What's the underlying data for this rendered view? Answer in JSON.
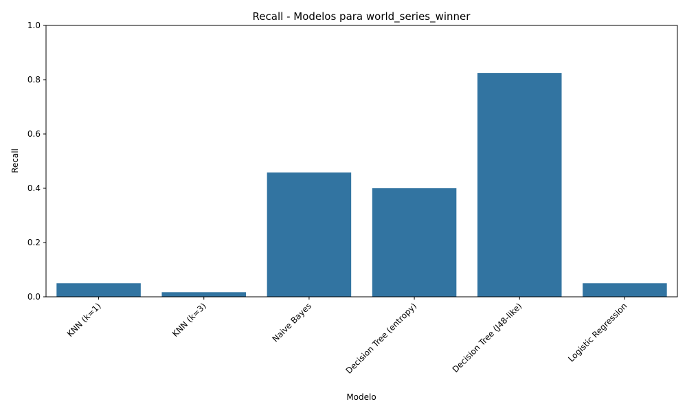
{
  "chart_data": {
    "type": "bar",
    "title": "Recall - Modelos para world_series_winner",
    "xlabel": "Modelo",
    "ylabel": "Recall",
    "categories": [
      "KNN (k=1)",
      "KNN (k=3)",
      "Naive Bayes",
      "Decision Tree (entropy)",
      "Decision Tree (J48-like)",
      "Logistic Regression"
    ],
    "values": [
      0.05,
      0.017,
      0.458,
      0.4,
      0.825,
      0.05
    ],
    "ylim": [
      0,
      1.0
    ],
    "yticks": [
      "0.0",
      "0.2",
      "0.4",
      "0.6",
      "0.8",
      "1.0"
    ],
    "grid": false,
    "bar_color": "#3274a1"
  }
}
